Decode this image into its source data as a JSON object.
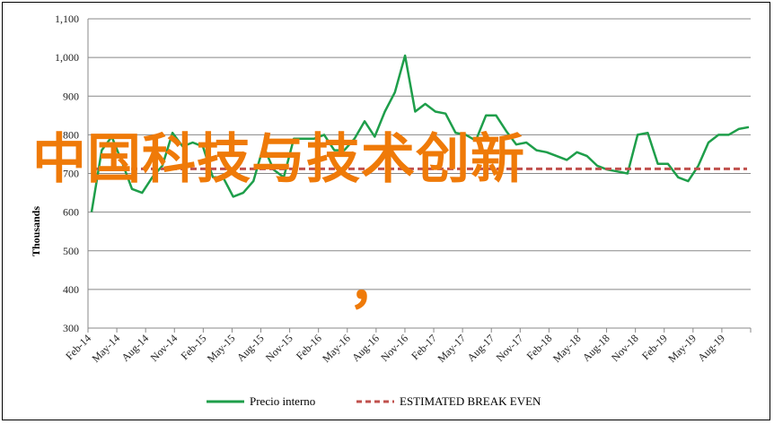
{
  "overlay": {
    "title": "中国科技与技术创新",
    "comma": "，",
    "color": "#ef7a08"
  },
  "chart_data": {
    "type": "line",
    "ylabel": "Thousands",
    "ylim": [
      300,
      1100
    ],
    "yticks": [
      "300",
      "400",
      "500",
      "600",
      "700",
      "800",
      "900",
      "1,000",
      "1,100"
    ],
    "ytick_values": [
      300,
      400,
      500,
      600,
      700,
      800,
      900,
      1000,
      1100
    ],
    "x_tick_labels": [
      "Feb-14",
      "May-14",
      "Aug-14",
      "Nov-14",
      "Feb-15",
      "May-15",
      "Aug-15",
      "Nov-15",
      "Feb-16",
      "May-16",
      "Aug-16",
      "Nov-16",
      "Feb-17",
      "May-17",
      "Aug-17",
      "Nov-17",
      "Feb-18",
      "May-18",
      "Aug-18",
      "Nov-18",
      "Feb-19",
      "May-19",
      "Aug-19"
    ],
    "grid": true,
    "legend_position": "bottom",
    "series": [
      {
        "name": "Precio interno",
        "color": "#1e9e4a",
        "style": "solid",
        "values": [
          600,
          760,
          795,
          730,
          660,
          650,
          690,
          720,
          805,
          770,
          780,
          770,
          690,
          690,
          640,
          650,
          680,
          770,
          710,
          690,
          790,
          790,
          790,
          800,
          760,
          760,
          790,
          835,
          795,
          860,
          910,
          1005,
          860,
          880,
          860,
          855,
          805,
          800,
          785,
          850,
          850,
          810,
          775,
          780,
          760,
          755,
          745,
          735,
          755,
          745,
          720,
          710,
          705,
          700,
          800,
          805,
          725,
          725,
          690,
          680,
          720,
          780,
          800,
          800,
          815,
          820
        ]
      },
      {
        "name": "ESTIMATED BREAK EVEN",
        "color": "#c0504d",
        "style": "dashed",
        "values": [
          712,
          712
        ]
      }
    ]
  }
}
